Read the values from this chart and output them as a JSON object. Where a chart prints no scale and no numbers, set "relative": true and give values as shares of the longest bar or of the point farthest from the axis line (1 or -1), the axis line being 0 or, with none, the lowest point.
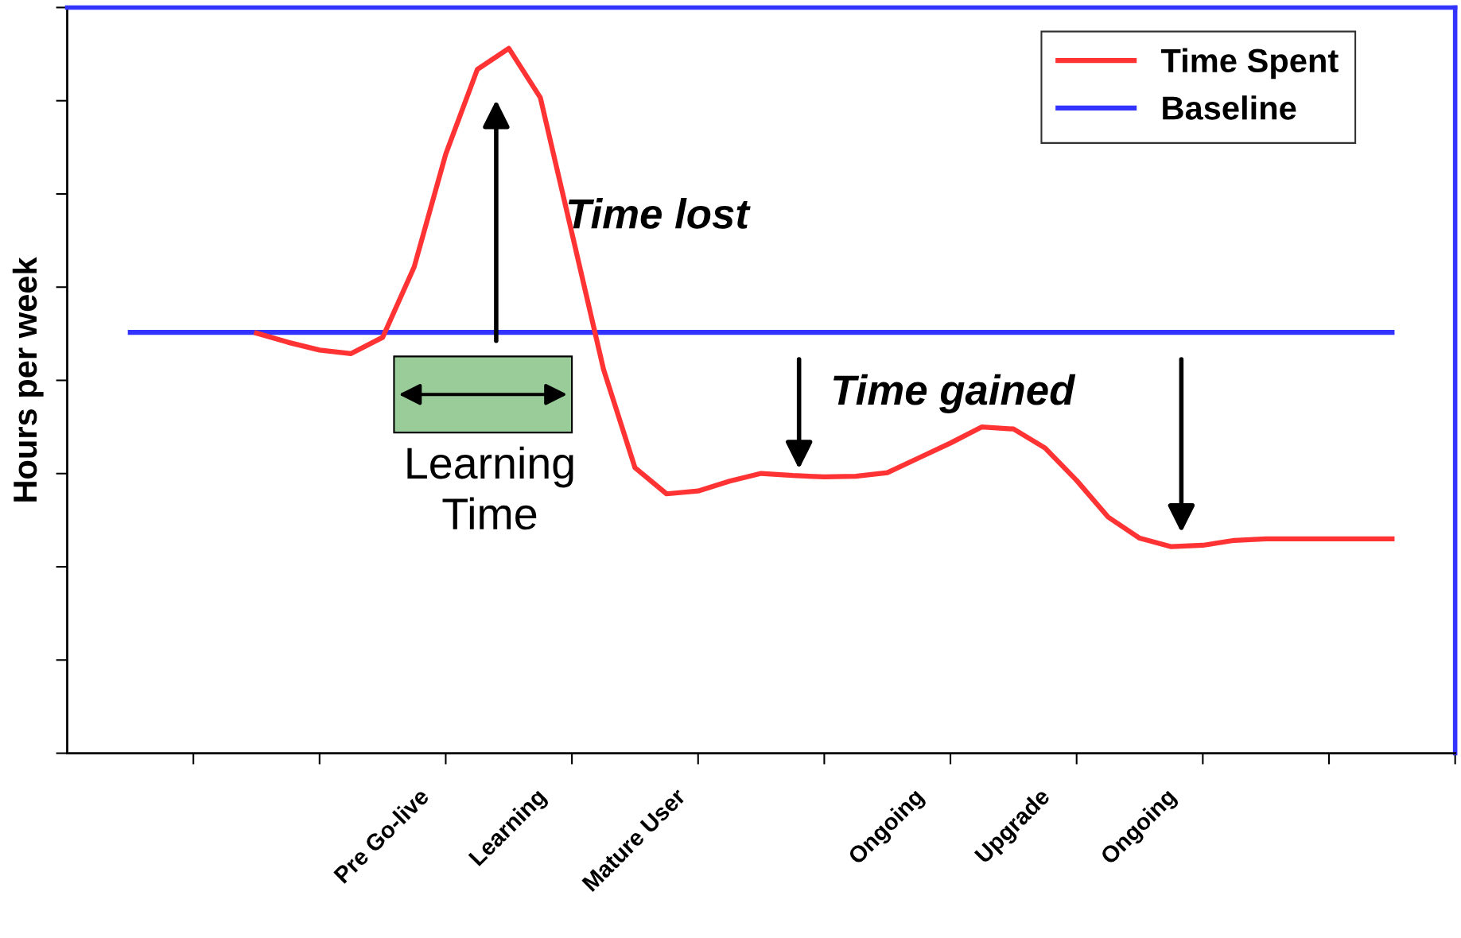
{
  "chart_data": {
    "type": "line",
    "ylabel": "Hours per week",
    "relative": true,
    "legend": "top right",
    "grid": false,
    "marker": "none",
    "line_style": "solid",
    "categories": [
      null,
      null,
      null,
      null,
      null,
      null,
      null,
      null,
      "Pre Go-live",
      null,
      null,
      null,
      "Learning",
      null,
      null,
      null,
      "Mature User",
      null,
      null,
      null,
      null,
      null,
      null,
      null,
      "Ongoing",
      null,
      null,
      null,
      "Upgrade",
      null,
      null,
      null,
      "Ongoing",
      null,
      null,
      null,
      null,
      null,
      null,
      null,
      null
    ],
    "series": [
      {
        "name": "Time Spent",
        "color": "#ff3333",
        "values": [
          null,
          null,
          null,
          null,
          0.596,
          0.583,
          0.572,
          0.567,
          0.59,
          0.69,
          0.85,
          0.97,
          1.0,
          0.93,
          0.738,
          0.545,
          0.405,
          0.368,
          0.372,
          0.386,
          0.397,
          0.394,
          0.392,
          0.393,
          0.398,
          0.419,
          0.44,
          0.463,
          0.46,
          0.433,
          0.387,
          0.335,
          0.305,
          0.293,
          0.295,
          0.302,
          0.304,
          0.304,
          0.304,
          0.304,
          0.304
        ]
      },
      {
        "name": "Baseline",
        "color": "#3333ff",
        "values": [
          0.597,
          0.597,
          0.597,
          0.597,
          0.597,
          0.597,
          0.597,
          0.597,
          0.597,
          0.597,
          0.597,
          0.597,
          0.597,
          0.597,
          0.597,
          0.597,
          0.597,
          0.597,
          0.597,
          0.597,
          0.597,
          0.597,
          0.597,
          0.597,
          0.597,
          0.597,
          0.597,
          0.597,
          0.597,
          0.597,
          0.597,
          0.597,
          0.597,
          0.597,
          0.597,
          0.597,
          0.597,
          0.597,
          0.597,
          0.597,
          0.597
        ]
      }
    ],
    "annotations": [
      "Time lost",
      "Time gained",
      "Learning\nTime"
    ]
  }
}
